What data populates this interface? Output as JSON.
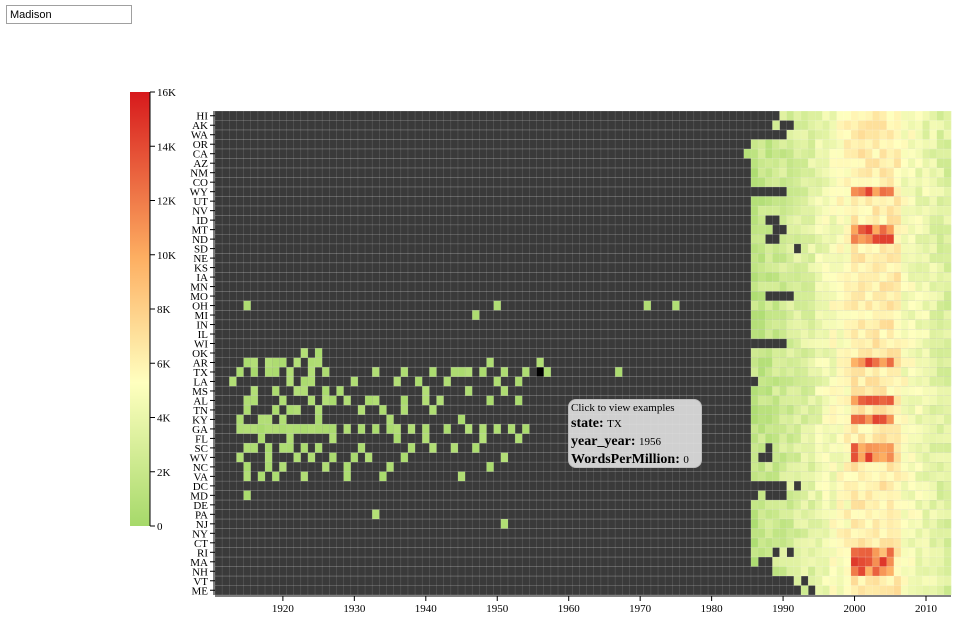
{
  "search": {
    "value": "Madison"
  },
  "tooltip": {
    "hint": "Click to view examples",
    "state_label": "state:",
    "state_value": "TX",
    "year_label": "year_year:",
    "year_value": "1956",
    "wpm_label": "WordsPerMillion:",
    "wpm_value": "0"
  },
  "colors": {
    "empty": "#3a3a3a",
    "low": "#a6d96a",
    "mid": "#ffffbf",
    "high1": "#fdae61",
    "high": "#d7191c"
  },
  "chart_data": {
    "type": "heatmap",
    "x_field": "year_year",
    "y_field": "state",
    "value_field": "WordsPerMillion",
    "x_range": [
      1911,
      2013
    ],
    "x_ticks": [
      1920,
      1930,
      1940,
      1950,
      1960,
      1970,
      1980,
      1990,
      2000,
      2010
    ],
    "states": [
      "HI",
      "AK",
      "WA",
      "OR",
      "CA",
      "AZ",
      "NM",
      "CO",
      "WY",
      "UT",
      "NV",
      "ID",
      "MT",
      "ND",
      "SD",
      "NE",
      "KS",
      "IA",
      "MN",
      "MO",
      "OH",
      "MI",
      "IN",
      "IL",
      "WI",
      "OK",
      "AR",
      "TX",
      "LA",
      "MS",
      "AL",
      "TN",
      "KY",
      "GA",
      "FL",
      "SC",
      "WV",
      "NC",
      "VA",
      "DC",
      "MD",
      "DE",
      "PA",
      "NJ",
      "NY",
      "CT",
      "RI",
      "MA",
      "NH",
      "VT",
      "ME"
    ],
    "legend": {
      "min": 0,
      "max": 16000,
      "ticks": [
        0,
        2000,
        4000,
        6000,
        8000,
        10000,
        12000,
        14000,
        16000
      ],
      "tick_labels": [
        "0",
        "2K",
        "4K",
        "6K",
        "8K",
        "10K",
        "12K",
        "14K",
        "16K"
      ]
    },
    "early_cells": {
      "OH": [
        1915,
        1950,
        1971,
        1975
      ],
      "MI": [
        1947
      ],
      "OK": [
        1923,
        1925
      ],
      "AR": [
        1915,
        1916,
        1918,
        1919,
        1920,
        1922,
        1924,
        1925,
        1949,
        1956
      ],
      "TX": [
        1914,
        1916,
        1918,
        1919,
        1921,
        1924,
        1926,
        1933,
        1937,
        1941,
        1944,
        1945,
        1946,
        1948,
        1951,
        1954,
        1957,
        1967
      ],
      "LA": [
        1913,
        1921,
        1923,
        1924,
        1930,
        1936,
        1939,
        1943,
        1950,
        1953
      ],
      "MS": [
        1916,
        1919,
        1922,
        1923,
        1926,
        1928,
        1940,
        1946,
        1951
      ],
      "AL": [
        1915,
        1916,
        1920,
        1924,
        1926,
        1927,
        1929,
        1932,
        1933,
        1937,
        1940,
        1942,
        1949,
        1953
      ],
      "TN": [
        1915,
        1919,
        1921,
        1922,
        1925,
        1931,
        1934,
        1937,
        1941
      ],
      "KY": [
        1914,
        1917,
        1918,
        1920,
        1925,
        1935,
        1945
      ],
      "GA": [
        1914,
        1915,
        1916,
        1917,
        1918,
        1919,
        1920,
        1921,
        1922,
        1923,
        1924,
        1925,
        1926,
        1927,
        1929,
        1931,
        1933,
        1935,
        1936,
        1938,
        1940,
        1943,
        1946,
        1948,
        1950,
        1952,
        1954
      ],
      "FL": [
        1917,
        1921,
        1927,
        1936,
        1940,
        1948,
        1953
      ],
      "SC": [
        1915,
        1916,
        1918,
        1920,
        1921,
        1923,
        1925,
        1931,
        1938,
        1941,
        1944,
        1947
      ],
      "WV": [
        1914,
        1918,
        1922,
        1924,
        1927,
        1930,
        1932,
        1937,
        1951
      ],
      "NC": [
        1915,
        1918,
        1920,
        1926,
        1929,
        1935,
        1949
      ],
      "VA": [
        1915,
        1917,
        1919,
        1923,
        1929,
        1934,
        1945
      ],
      "MD": [
        1915
      ],
      "PA": [
        1933
      ],
      "NJ": [
        1951
      ]
    },
    "modern_start": {
      "HI": 1990,
      "AK": 1989,
      "WA": 1991,
      "OR": 1986,
      "CA": 1985,
      "AZ": 1986,
      "NM": 1986,
      "CO": 1986,
      "WY": 1991,
      "UT": 1986,
      "NV": 1986,
      "ID": 1986,
      "MT": 1986,
      "ND": 1986,
      "SD": 1986,
      "NE": 1986,
      "KS": 1986,
      "IA": 1986,
      "MN": 1986,
      "MO": 1986,
      "OH": 1986,
      "MI": 1986,
      "IN": 1986,
      "IL": 1986,
      "WI": 1991,
      "OK": 1986,
      "AR": 1986,
      "TX": 1986,
      "LA": 1986,
      "MS": 1986,
      "AL": 1986,
      "TN": 1986,
      "KY": 1986,
      "GA": 1986,
      "FL": 1986,
      "SC": 1986,
      "WV": 1986,
      "NC": 1986,
      "VA": 1986,
      "DC": 1991,
      "MD": 1987,
      "DE": 1986,
      "PA": 1986,
      "NJ": 1986,
      "NY": 1986,
      "CT": 1986,
      "RI": 1986,
      "MA": 1986,
      "NH": 1986,
      "VT": 1992,
      "ME": 1993
    },
    "modern_gaps": {
      "AK": [
        1990,
        1991
      ],
      "WY": [
        1987,
        1988,
        1989,
        1990
      ],
      "ID": [
        1988,
        1989
      ],
      "MT": [
        1989,
        1990
      ],
      "ND": [
        1988,
        1989
      ],
      "SD": [
        1992
      ],
      "MO": [
        1988,
        1989,
        1990,
        1991
      ],
      "LA": [
        1986
      ],
      "SC": [
        1988
      ],
      "WV": [
        1987,
        1988
      ],
      "DC": [
        1992
      ],
      "MD": [
        1988,
        1989,
        1990
      ],
      "RI": [
        1989,
        1991
      ],
      "MA": [
        1987,
        1988
      ],
      "NH": [
        1986,
        1987,
        1988
      ],
      "VT": [
        1993
      ],
      "ME": [
        1994
      ]
    },
    "peak_years": [
      2000,
      2001,
      2002,
      2003,
      2004,
      2005
    ],
    "peak_states": [
      "WY",
      "MT",
      "ND",
      "WV",
      "MA",
      "RI",
      "AR",
      "SC",
      "KY",
      "AL",
      "NH"
    ],
    "highlight": {
      "state": "TX",
      "year": 1956,
      "value": 0
    }
  }
}
